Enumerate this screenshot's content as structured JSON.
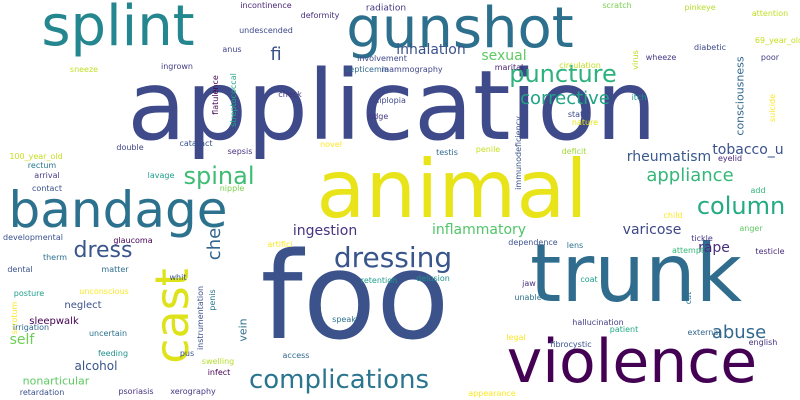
{
  "words": [
    {
      "text": "application",
      "color": "#3e4a89"
    },
    {
      "text": "foo",
      "color": "#3b528b"
    },
    {
      "text": "animal",
      "color": "#e8e419"
    },
    {
      "text": "trunk",
      "color": "#2f6c8e"
    },
    {
      "text": "violence",
      "color": "#440154"
    },
    {
      "text": "gunshot",
      "color": "#2d708e"
    },
    {
      "text": "splint",
      "color": "#24868e"
    },
    {
      "text": "bandage",
      "color": "#2c728e"
    },
    {
      "text": "cast",
      "color": "#dde318"
    },
    {
      "text": "complications",
      "color": "#2b758e"
    },
    {
      "text": "dressing",
      "color": "#39568c"
    },
    {
      "text": "puncture",
      "color": "#2db27d"
    },
    {
      "text": "spinal",
      "color": "#3fbc73"
    },
    {
      "text": "column",
      "color": "#25ab82"
    },
    {
      "text": "dress",
      "color": "#3a548c"
    },
    {
      "text": "appliance",
      "color": "#35b779"
    },
    {
      "text": "abuse",
      "color": "#31688e"
    },
    {
      "text": "corrective",
      "color": "#20a386"
    },
    {
      "text": "che",
      "color": "#32658e"
    },
    {
      "text": "fi",
      "color": "#3a538b"
    },
    {
      "text": "inhalation",
      "color": "#3b528b"
    },
    {
      "text": "sexual",
      "color": "#5ec962"
    },
    {
      "text": "inflammatory",
      "color": "#52c569"
    },
    {
      "text": "ingestion",
      "color": "#46327e"
    },
    {
      "text": "rheumatism",
      "color": "#38588c"
    },
    {
      "text": "tobacco_u",
      "color": "#3b518b"
    },
    {
      "text": "varicose",
      "color": "#3f4788"
    },
    {
      "text": "rape",
      "color": "#462f7e"
    },
    {
      "text": "self",
      "color": "#6ece58"
    },
    {
      "text": "alcohol",
      "color": "#3a548c"
    },
    {
      "text": "consciousness",
      "color": "#31688e"
    },
    {
      "text": "vein",
      "color": "#2d708e"
    },
    {
      "text": "radiation",
      "color": "#443a83"
    },
    {
      "text": "incontinence",
      "color": "#482878"
    },
    {
      "text": "deformity",
      "color": "#46327e"
    },
    {
      "text": "scratch",
      "color": "#7ad151"
    },
    {
      "text": "pinkeye",
      "color": "#b5de2b"
    },
    {
      "text": "attention",
      "color": "#c2df23"
    },
    {
      "text": "undescended",
      "color": "#3e4989"
    },
    {
      "text": "anus",
      "color": "#404688"
    },
    {
      "text": "involvement",
      "color": "#3f4889"
    },
    {
      "text": "diabetic",
      "color": "#3f4889"
    },
    {
      "text": "69_year_old",
      "color": "#c8e020"
    },
    {
      "text": "septicemia",
      "color": "#31688e"
    },
    {
      "text": "mammography",
      "color": "#3f4788"
    },
    {
      "text": "wheeze",
      "color": "#443983"
    },
    {
      "text": "virus",
      "color": "#bddf26"
    },
    {
      "text": "sneeze",
      "color": "#c0df25"
    },
    {
      "text": "ingrown",
      "color": "#433e85"
    },
    {
      "text": "marital",
      "color": "#482475"
    },
    {
      "text": "circulation",
      "color": "#c2df23"
    },
    {
      "text": "poor",
      "color": "#433e85"
    },
    {
      "text": "flatulence",
      "color": "#440154"
    },
    {
      "text": "streptococcal",
      "color": "#22a785"
    },
    {
      "text": "check",
      "color": "#453781"
    },
    {
      "text": "diplopia",
      "color": "#3e4989"
    },
    {
      "text": "itch",
      "color": "#21918c"
    },
    {
      "text": "ridge",
      "color": "#453882"
    },
    {
      "text": "state",
      "color": "#3e4989"
    },
    {
      "text": "nature",
      "color": "#e5e419"
    },
    {
      "text": "suicide",
      "color": "#fde725"
    },
    {
      "text": "immunodeficiency",
      "color": "#3b528b"
    },
    {
      "text": "novel",
      "color": "#fde725"
    },
    {
      "text": "testis",
      "color": "#31688e"
    },
    {
      "text": "penile",
      "color": "#c8e020"
    },
    {
      "text": "deficit",
      "color": "#a0da39"
    },
    {
      "text": "eyelid",
      "color": "#482878"
    },
    {
      "text": "100_year_old",
      "color": "#c5e021"
    },
    {
      "text": "rectum",
      "color": "#2a788e"
    },
    {
      "text": "cataract",
      "color": "#3b528b"
    },
    {
      "text": "sepsis",
      "color": "#46327e"
    },
    {
      "text": "double",
      "color": "#414487"
    },
    {
      "text": "arrival",
      "color": "#433e85"
    },
    {
      "text": "lavage",
      "color": "#1f9e89"
    },
    {
      "text": "contact",
      "color": "#3b528b"
    },
    {
      "text": "nipple",
      "color": "#7ad151"
    },
    {
      "text": "add",
      "color": "#32b67a"
    },
    {
      "text": "child",
      "color": "#fde725"
    },
    {
      "text": "developmental",
      "color": "#3b528b"
    },
    {
      "text": "glaucoma",
      "color": "#440154"
    },
    {
      "text": "artifici",
      "color": "#fde725"
    },
    {
      "text": "dependence",
      "color": "#3b528b"
    },
    {
      "text": "anger",
      "color": "#5ec962"
    },
    {
      "text": "attempt",
      "color": "#35b779"
    },
    {
      "text": "tickle",
      "color": "#443983"
    },
    {
      "text": "testicle",
      "color": "#472c7a"
    },
    {
      "text": "lens",
      "color": "#2c728e"
    },
    {
      "text": "dental",
      "color": "#3b528b"
    },
    {
      "text": "therm",
      "color": "#2d708e"
    },
    {
      "text": "matter",
      "color": "#2d708e"
    },
    {
      "text": "whit",
      "color": "#3b528b"
    },
    {
      "text": "posture",
      "color": "#1f9e89"
    },
    {
      "text": "unconscious",
      "color": "#fde725"
    },
    {
      "text": "penis",
      "color": "#2a788e"
    },
    {
      "text": "jaw",
      "color": "#46327e"
    },
    {
      "text": "unable",
      "color": "#2c728e"
    },
    {
      "text": "delusion",
      "color": "#21918c"
    },
    {
      "text": "retention",
      "color": "#1f9e89"
    },
    {
      "text": "coat",
      "color": "#1f9e89"
    },
    {
      "text": "cat",
      "color": "#2c728e"
    },
    {
      "text": "neglect",
      "color": "#3b528b"
    },
    {
      "text": "sleepwalk",
      "color": "#440154"
    },
    {
      "text": "scrotum",
      "color": "#fde725"
    },
    {
      "text": "instrumentation",
      "color": "#3b528b"
    },
    {
      "text": "speak",
      "color": "#2c728e"
    },
    {
      "text": "hallucination",
      "color": "#433e85"
    },
    {
      "text": "irrigation",
      "color": "#31688e"
    },
    {
      "text": "uncertain",
      "color": "#2c728e"
    },
    {
      "text": "legal",
      "color": "#fde725"
    },
    {
      "text": "patient",
      "color": "#22a785"
    },
    {
      "text": "external",
      "color": "#32658e"
    },
    {
      "text": "english",
      "color": "#46327e"
    },
    {
      "text": "feeding",
      "color": "#21918c"
    },
    {
      "text": "pus",
      "color": "#3b528b"
    },
    {
      "text": "swelling",
      "color": "#b5de2b"
    },
    {
      "text": "access",
      "color": "#31688e"
    },
    {
      "text": "fibrocystic",
      "color": "#3b528b"
    },
    {
      "text": "nonarticular",
      "color": "#5ec962"
    },
    {
      "text": "infect",
      "color": "#440154"
    },
    {
      "text": "retardation",
      "color": "#3b528b"
    },
    {
      "text": "psoriasis",
      "color": "#46327e"
    },
    {
      "text": "xerography",
      "color": "#443983"
    },
    {
      "text": "appearance",
      "color": "#fde725"
    }
  ]
}
